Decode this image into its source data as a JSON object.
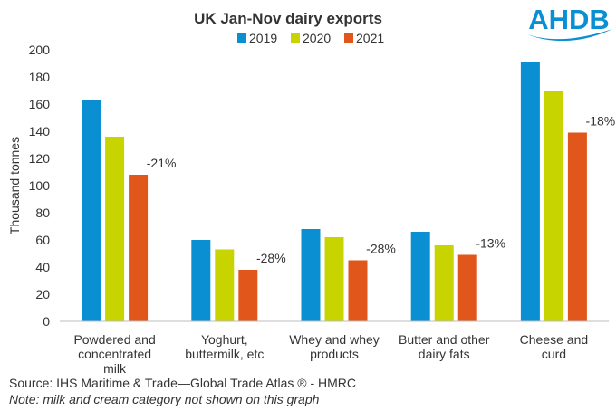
{
  "chart_data": {
    "type": "bar",
    "title": "UK Jan-Nov dairy exports",
    "ylabel": "Thousand tonnes",
    "xlabel": "",
    "ylim": [
      0,
      200
    ],
    "yticks": [
      0,
      20,
      40,
      60,
      80,
      100,
      120,
      140,
      160,
      180,
      200
    ],
    "grid": false,
    "legend_position": "top",
    "categories": [
      "Powdered and concentrated milk",
      "Yoghurt, buttermilk, etc",
      "Whey and whey products",
      "Butter and other dairy fats",
      "Cheese and curd"
    ],
    "category_lines": [
      [
        "Powdered and",
        "concentrated",
        "milk"
      ],
      [
        "Yoghurt,",
        "buttermilk, etc"
      ],
      [
        "Whey and whey",
        "products"
      ],
      [
        "Butter and other",
        "dairy fats"
      ],
      [
        "Cheese and",
        "curd"
      ]
    ],
    "series": [
      {
        "name": "2019",
        "color": "#0a8fd2",
        "values": [
          163,
          60,
          68,
          66,
          191
        ]
      },
      {
        "name": "2020",
        "color": "#c8d400",
        "values": [
          136,
          53,
          62,
          56,
          170
        ]
      },
      {
        "name": "2021",
        "color": "#e0561b",
        "values": [
          108,
          38,
          45,
          49,
          139
        ]
      }
    ],
    "annotations": [
      "-21%",
      "-28%",
      "-28%",
      "-13%",
      "-18%"
    ]
  },
  "logo": {
    "text": "AHDB",
    "color": "#0a8fd2"
  },
  "footer": {
    "source": "Source: IHS Maritime & Trade—Global Trade Atlas ®  - HMRC",
    "note": "Note: milk and cream category not shown  on this graph"
  }
}
